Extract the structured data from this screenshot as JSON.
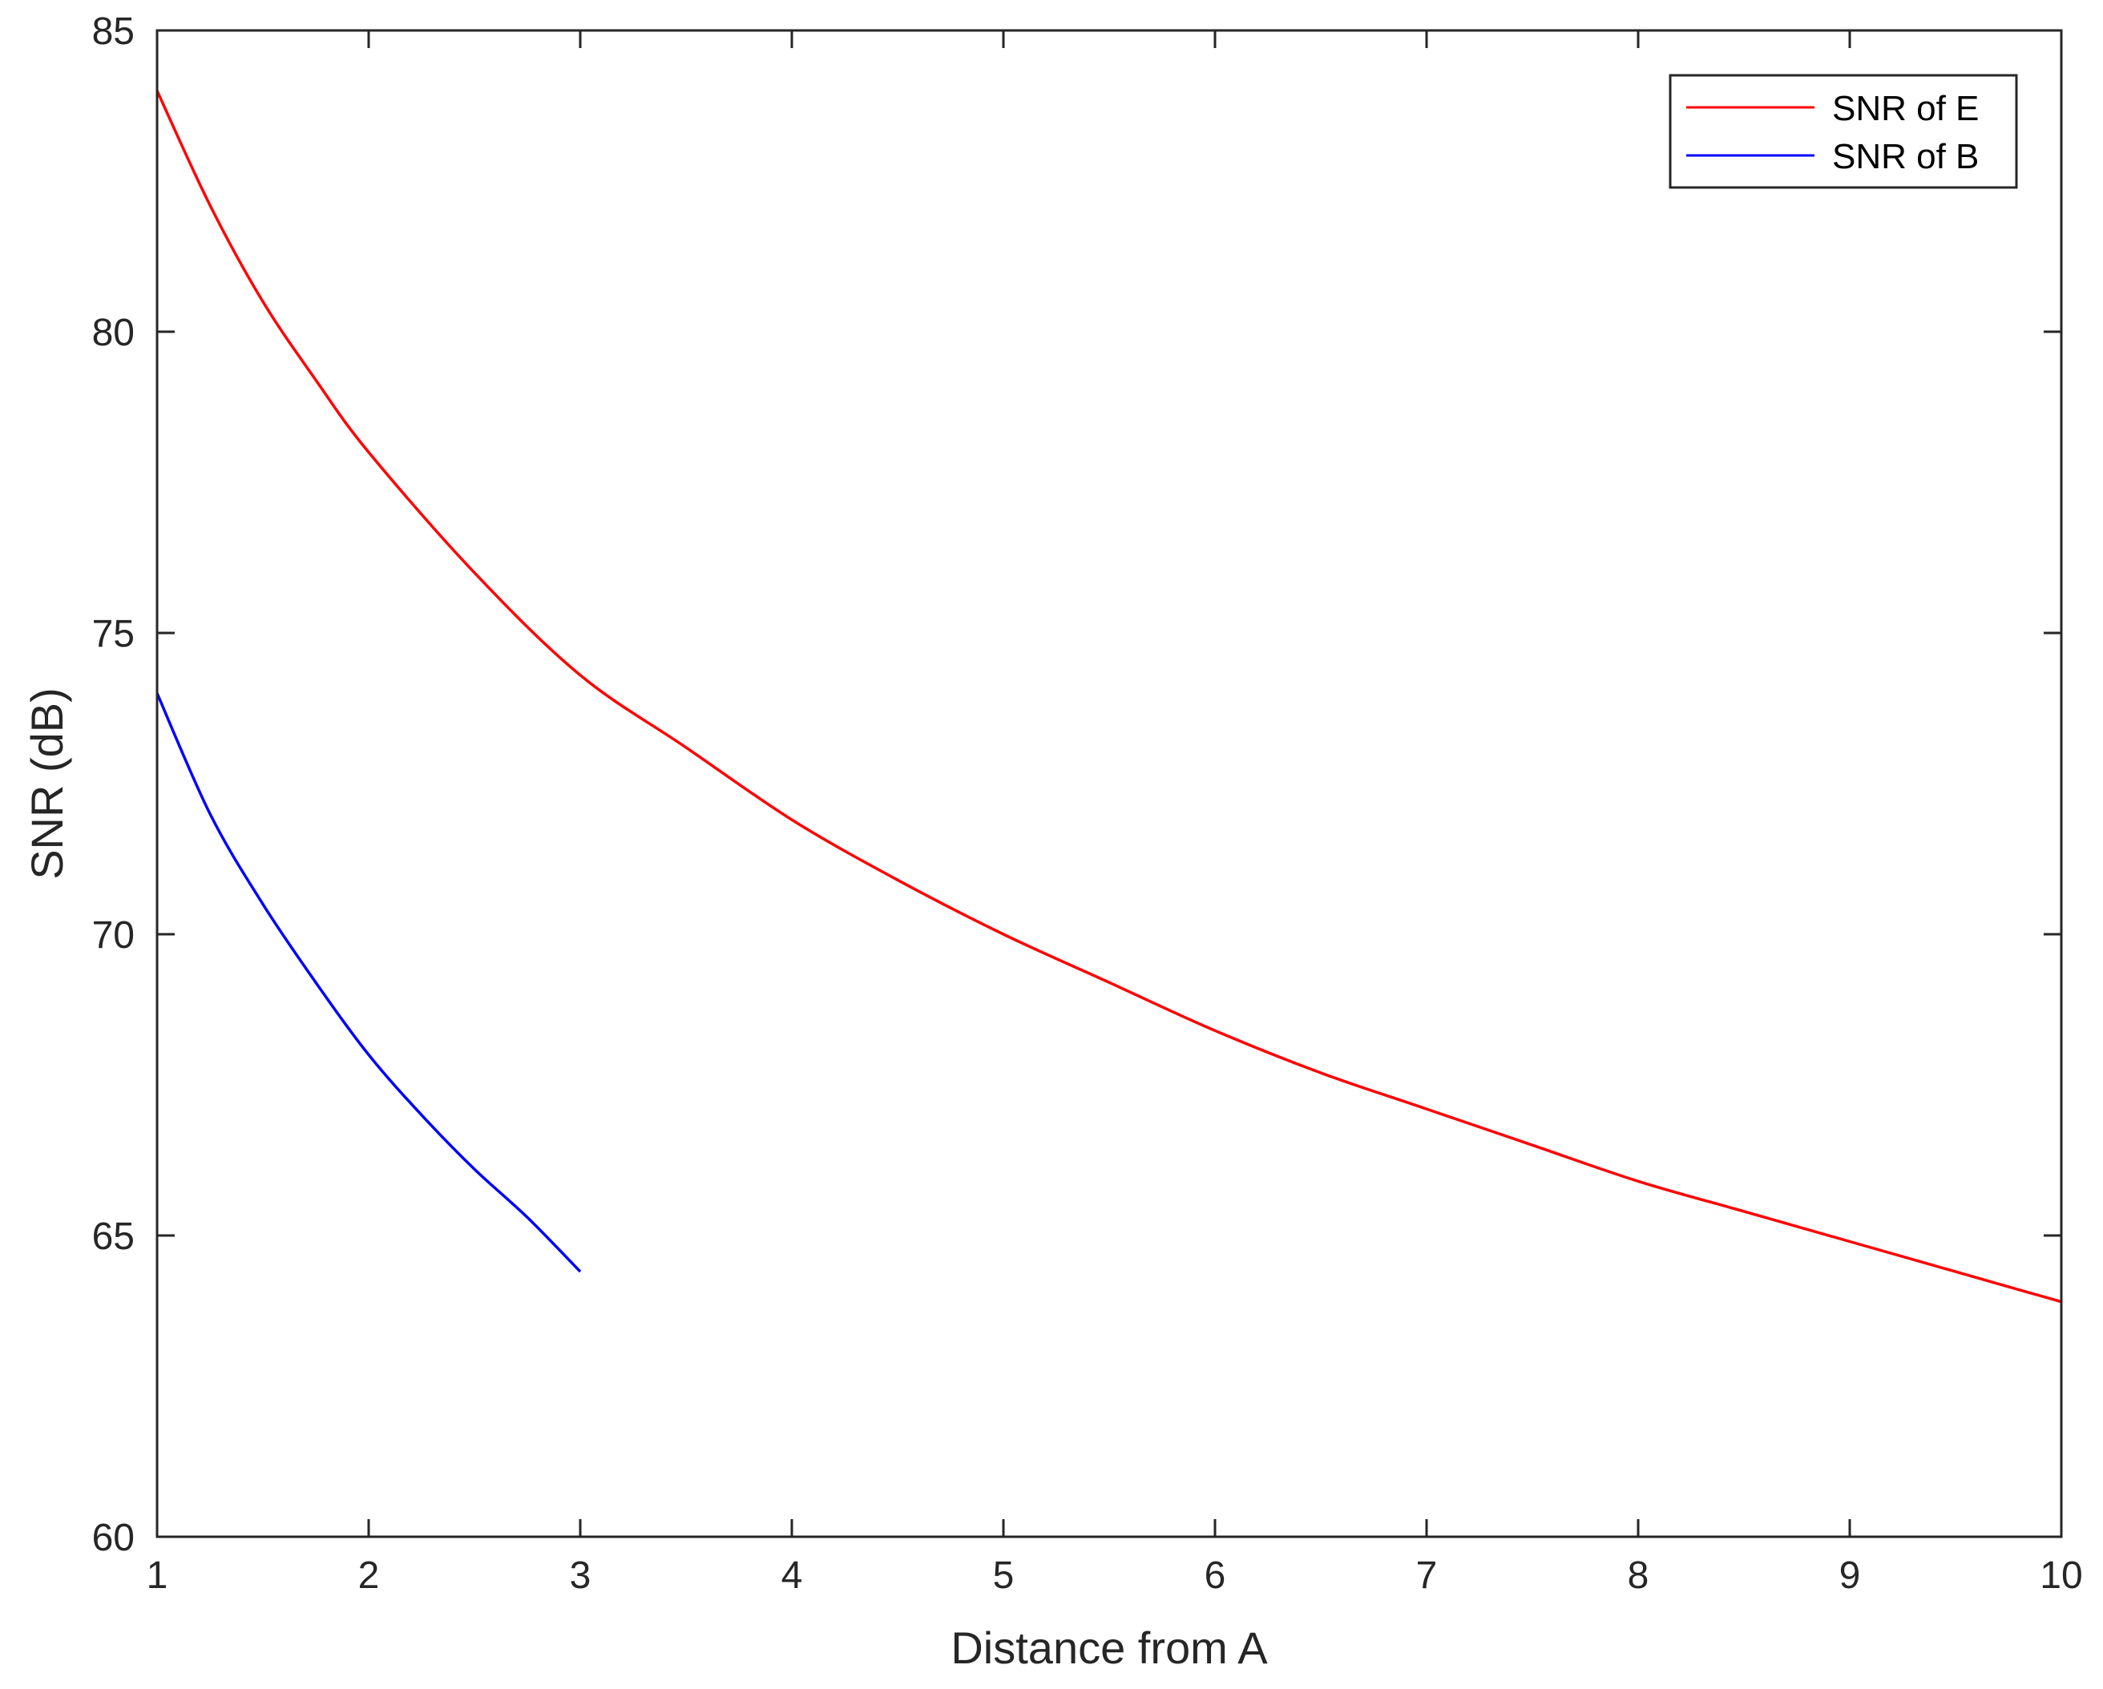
{
  "chart_data": {
    "type": "line",
    "title": "",
    "xlabel": "Distance from A",
    "ylabel": "SNR (dB)",
    "xlim": [
      1,
      10
    ],
    "ylim": [
      60,
      85
    ],
    "x_ticks": [
      1,
      2,
      3,
      4,
      5,
      6,
      7,
      8,
      9,
      10
    ],
    "y_ticks": [
      60,
      65,
      70,
      75,
      80,
      85
    ],
    "x_tick_labels": [
      "1",
      "2",
      "3",
      "4",
      "5",
      "6",
      "7",
      "8",
      "9",
      "10"
    ],
    "y_tick_labels": [
      "60",
      "65",
      "70",
      "75",
      "80",
      "85"
    ],
    "grid": false,
    "legend_position": "top-right",
    "series": [
      {
        "name": "SNR of E",
        "color": "#ff0000",
        "x": [
          1,
          1.25,
          1.5,
          1.75,
          2,
          2.5,
          3,
          3.5,
          4,
          4.5,
          5,
          5.5,
          6,
          6.5,
          7,
          7.5,
          8,
          8.5,
          9,
          9.5,
          10
        ],
        "y": [
          84.0,
          82.1,
          80.5,
          79.2,
          78.0,
          76.0,
          74.3,
          73.1,
          71.9,
          70.9,
          70.0,
          69.2,
          68.4,
          67.7,
          67.1,
          66.5,
          65.9,
          65.4,
          64.9,
          64.4,
          63.9
        ]
      },
      {
        "name": "SNR of B",
        "color": "#0000ff",
        "x": [
          1,
          1.25,
          1.5,
          1.75,
          2,
          2.25,
          2.5,
          2.75,
          3
        ],
        "y": [
          74.0,
          72.0,
          70.5,
          69.2,
          68.0,
          67.0,
          66.1,
          65.3,
          64.4
        ]
      }
    ]
  }
}
